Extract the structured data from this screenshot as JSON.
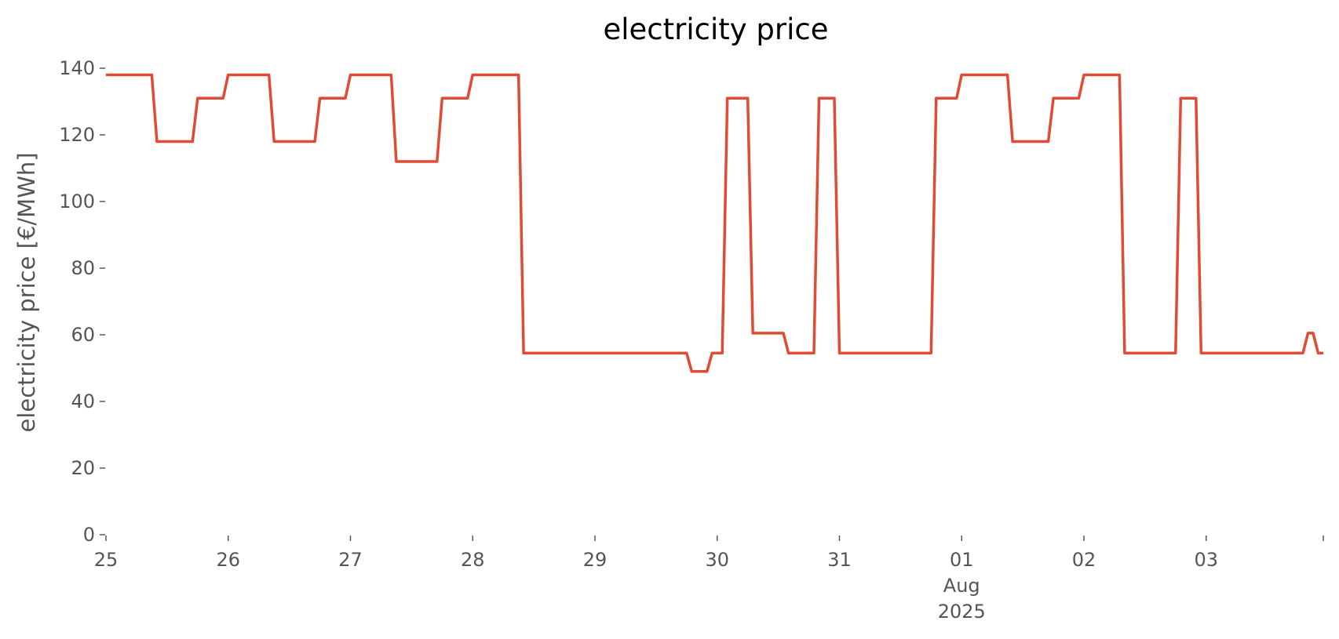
{
  "chart_data": {
    "type": "line",
    "title": "electricity price",
    "xlabel": "",
    "ylabel": "electricity price [€/MWh]",
    "ylim": [
      0,
      140
    ],
    "xlim": [
      "2025-07-25T00:00",
      "2025-08-03T23:00"
    ],
    "yticks": [
      0,
      20,
      40,
      60,
      80,
      100,
      120,
      140
    ],
    "xticks": [
      {
        "x": "2025-07-25",
        "label": [
          "25"
        ]
      },
      {
        "x": "2025-07-26",
        "label": [
          "26"
        ]
      },
      {
        "x": "2025-07-27",
        "label": [
          "27"
        ]
      },
      {
        "x": "2025-07-28",
        "label": [
          "28"
        ]
      },
      {
        "x": "2025-07-29",
        "label": [
          "29"
        ]
      },
      {
        "x": "2025-07-30",
        "label": [
          "30"
        ]
      },
      {
        "x": "2025-07-31",
        "label": [
          "31"
        ]
      },
      {
        "x": "2025-08-01",
        "label": [
          "01",
          "Aug",
          "2025"
        ]
      },
      {
        "x": "2025-08-02",
        "label": [
          "02"
        ]
      },
      {
        "x": "2025-08-03",
        "label": [
          "03"
        ]
      },
      {
        "x": "2025-08-03T23:00",
        "label": [
          ""
        ]
      }
    ],
    "grid": false,
    "color": "#E24A33",
    "series": [
      {
        "values": [
          [
            "2025-07-25T00:00",
            138
          ],
          [
            "2025-07-25T09:00",
            138
          ],
          [
            "2025-07-25T10:00",
            118
          ],
          [
            "2025-07-25T17:00",
            118
          ],
          [
            "2025-07-25T18:00",
            131
          ],
          [
            "2025-07-25T23:00",
            131
          ],
          [
            "2025-07-26T00:00",
            138
          ],
          [
            "2025-07-26T08:00",
            138
          ],
          [
            "2025-07-26T09:00",
            118
          ],
          [
            "2025-07-26T17:00",
            118
          ],
          [
            "2025-07-26T18:00",
            131
          ],
          [
            "2025-07-26T23:00",
            131
          ],
          [
            "2025-07-27T00:00",
            138
          ],
          [
            "2025-07-27T08:00",
            138
          ],
          [
            "2025-07-27T09:00",
            112
          ],
          [
            "2025-07-27T17:00",
            112
          ],
          [
            "2025-07-27T18:00",
            131
          ],
          [
            "2025-07-27T23:00",
            131
          ],
          [
            "2025-07-28T00:00",
            138
          ],
          [
            "2025-07-28T09:00",
            138
          ],
          [
            "2025-07-28T10:00",
            54.5
          ],
          [
            "2025-07-29T18:00",
            54.5
          ],
          [
            "2025-07-29T19:00",
            49
          ],
          [
            "2025-07-29T22:00",
            49
          ],
          [
            "2025-07-29T23:00",
            54.5
          ],
          [
            "2025-07-30T01:00",
            54.5
          ],
          [
            "2025-07-30T02:00",
            131
          ],
          [
            "2025-07-30T06:00",
            131
          ],
          [
            "2025-07-30T07:00",
            60.5
          ],
          [
            "2025-07-30T13:00",
            60.5
          ],
          [
            "2025-07-30T14:00",
            54.5
          ],
          [
            "2025-07-30T19:00",
            54.5
          ],
          [
            "2025-07-30T20:00",
            131
          ],
          [
            "2025-07-30T23:00",
            131
          ],
          [
            "2025-07-31T00:00",
            54.5
          ],
          [
            "2025-07-31T18:00",
            54.5
          ],
          [
            "2025-07-31T19:00",
            131
          ],
          [
            "2025-07-31T23:00",
            131
          ],
          [
            "2025-08-01T00:00",
            138
          ],
          [
            "2025-08-01T09:00",
            138
          ],
          [
            "2025-08-01T10:00",
            118
          ],
          [
            "2025-08-01T17:00",
            118
          ],
          [
            "2025-08-01T18:00",
            131
          ],
          [
            "2025-08-01T23:00",
            131
          ],
          [
            "2025-08-02T00:00",
            138
          ],
          [
            "2025-08-02T07:00",
            138
          ],
          [
            "2025-08-02T08:00",
            54.5
          ],
          [
            "2025-08-02T18:00",
            54.5
          ],
          [
            "2025-08-02T19:00",
            131
          ],
          [
            "2025-08-02T22:00",
            131
          ],
          [
            "2025-08-02T23:00",
            54.5
          ],
          [
            "2025-08-03T19:00",
            54.5
          ],
          [
            "2025-08-03T20:00",
            60.5
          ],
          [
            "2025-08-03T21:00",
            60.5
          ],
          [
            "2025-08-03T22:00",
            54.5
          ],
          [
            "2025-08-03T23:00",
            54.5
          ]
        ]
      }
    ]
  }
}
